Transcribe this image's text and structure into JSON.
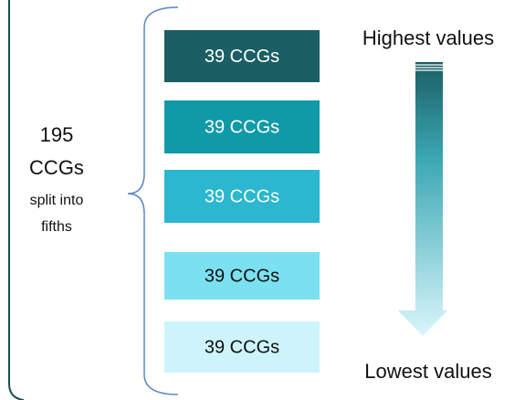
{
  "left_label": {
    "count": "195",
    "unit": "CCGs",
    "note_1": "split into",
    "note_2": "fifths"
  },
  "boxes": [
    {
      "label": "39 CCGs",
      "color": "#1b5e63",
      "text_color": "#ffffff"
    },
    {
      "label": "39 CCGs",
      "color": "#0e9aa7",
      "text_color": "#ffffff"
    },
    {
      "label": "39 CCGs",
      "color": "#2ab7cf",
      "text_color": "#ffffff"
    },
    {
      "label": "39 CCGs",
      "color": "#7be0ef",
      "text_color": "#111111"
    },
    {
      "label": "39 CCGs",
      "color": "#cdf4fb",
      "text_color": "#111111"
    }
  ],
  "top_label": "Highest values",
  "bottom_label": "Lowest values"
}
